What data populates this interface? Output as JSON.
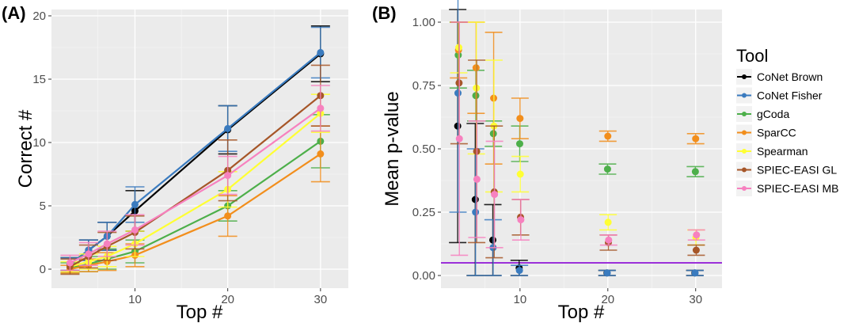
{
  "chart_data": [
    {
      "panel": "(A)",
      "type": "line",
      "xlabel": "Top #",
      "ylabel": "Correct #",
      "xlim": [
        1,
        33
      ],
      "ylim": [
        -1.5,
        20.5
      ],
      "xticks": [
        10,
        20,
        30
      ],
      "yticks": [
        0,
        5,
        10,
        15,
        20
      ],
      "x": [
        3,
        5,
        7,
        10,
        20,
        30
      ],
      "series": [
        {
          "name": "CoNet Brown",
          "color": "#000000",
          "values": [
            0.4,
            1.5,
            2.6,
            4.6,
            11.0,
            17.0
          ],
          "errors": [
            0.5,
            0.8,
            1.1,
            1.6,
            1.9,
            2.2
          ]
        },
        {
          "name": "CoNet Fisher",
          "color": "#3a7bbf",
          "values": [
            0.4,
            1.5,
            2.6,
            5.1,
            11.1,
            17.1
          ],
          "errors": [
            0.5,
            0.8,
            1.1,
            1.4,
            1.8,
            2.0
          ]
        },
        {
          "name": "gCoda",
          "color": "#4daf4a",
          "values": [
            0.1,
            0.4,
            0.8,
            1.4,
            5.0,
            10.1
          ],
          "errors": [
            0.4,
            0.6,
            0.8,
            0.9,
            1.2,
            2.1
          ]
        },
        {
          "name": "SparCC",
          "color": "#f28e1c",
          "values": [
            0.0,
            0.3,
            0.6,
            1.1,
            4.2,
            9.1
          ],
          "errors": [
            0.3,
            0.5,
            0.7,
            0.9,
            1.6,
            2.2
          ]
        },
        {
          "name": "Spearman",
          "color": "#ffff33",
          "values": [
            0.2,
            0.6,
            1.0,
            2.0,
            6.3,
            12.3
          ],
          "errors": [
            0.4,
            0.6,
            0.8,
            1.0,
            1.4,
            1.5
          ]
        },
        {
          "name": "SPIEC-EASI GL",
          "color": "#a65628",
          "values": [
            0.2,
            1.0,
            1.8,
            2.9,
            7.8,
            13.7
          ],
          "errors": [
            0.6,
            0.9,
            1.1,
            1.3,
            2.4,
            2.4
          ]
        },
        {
          "name": "SPIEC-EASI MB",
          "color": "#f781bf",
          "values": [
            0.5,
            1.2,
            2.0,
            3.1,
            7.4,
            12.7
          ],
          "errors": [
            0.6,
            0.9,
            1.0,
            1.2,
            1.5,
            1.8
          ]
        }
      ]
    },
    {
      "panel": "(B)",
      "type": "scatter",
      "xlabel": "Top #",
      "ylabel": "Mean p-value",
      "xlim": [
        1,
        33
      ],
      "ylim": [
        -0.05,
        1.05
      ],
      "xticks": [
        10,
        20,
        30
      ],
      "yticks": [
        0.0,
        0.25,
        0.5,
        0.75,
        1.0
      ],
      "ytick_labels": [
        "0.00",
        "0.25",
        "0.50",
        "0.75",
        "1.00"
      ],
      "threshold": {
        "value": 0.05,
        "color": "#9b30d9"
      },
      "x": [
        3,
        5,
        7,
        10,
        20,
        30
      ],
      "series": [
        {
          "name": "CoNet Brown",
          "color": "#000000",
          "values": [
            0.59,
            0.3,
            0.14,
            0.03,
            0.01,
            0.01
          ],
          "errors": [
            0.46,
            0.3,
            0.14,
            0.03,
            0.01,
            0.01
          ]
        },
        {
          "name": "CoNet Fisher",
          "color": "#3a7bbf",
          "values": [
            0.72,
            0.25,
            0.11,
            0.02,
            0.01,
            0.01
          ],
          "errors": [
            0.47,
            0.25,
            0.11,
            0.02,
            0.01,
            0.01
          ]
        },
        {
          "name": "gCoda",
          "color": "#4daf4a",
          "values": [
            0.87,
            0.71,
            0.56,
            0.52,
            0.42,
            0.41
          ],
          "errors": [
            0.13,
            0.1,
            0.05,
            0.07,
            0.02,
            0.02
          ]
        },
        {
          "name": "SparCC",
          "color": "#f28e1c",
          "values": [
            0.89,
            0.82,
            0.7,
            0.62,
            0.55,
            0.54
          ],
          "errors": [
            0.11,
            0.18,
            0.26,
            0.08,
            0.02,
            0.02
          ]
        },
        {
          "name": "Spearman",
          "color": "#ffff33",
          "values": [
            0.9,
            0.74,
            0.59,
            0.4,
            0.21,
            0.15
          ],
          "errors": [
            0.1,
            0.26,
            0.26,
            0.07,
            0.03,
            0.03
          ]
        },
        {
          "name": "SPIEC-EASI GL",
          "color": "#a65628",
          "values": [
            0.76,
            0.49,
            0.33,
            0.23,
            0.13,
            0.1
          ],
          "errors": [
            0.24,
            0.36,
            0.26,
            0.07,
            0.03,
            0.02
          ]
        },
        {
          "name": "SPIEC-EASI MB",
          "color": "#f781bf",
          "values": [
            0.54,
            0.38,
            0.32,
            0.22,
            0.14,
            0.16
          ],
          "errors": [
            0.46,
            0.23,
            0.21,
            0.08,
            0.02,
            0.02
          ]
        }
      ]
    }
  ],
  "legend": {
    "title": "Tool",
    "items": [
      {
        "label": "CoNet Brown",
        "color": "#000000"
      },
      {
        "label": "CoNet Fisher",
        "color": "#3a7bbf"
      },
      {
        "label": "gCoda",
        "color": "#4daf4a"
      },
      {
        "label": "SparCC",
        "color": "#f28e1c"
      },
      {
        "label": "Spearman",
        "color": "#ffff33"
      },
      {
        "label": "SPIEC-EASI GL",
        "color": "#a65628"
      },
      {
        "label": "SPIEC-EASI MB",
        "color": "#f781bf"
      }
    ]
  }
}
